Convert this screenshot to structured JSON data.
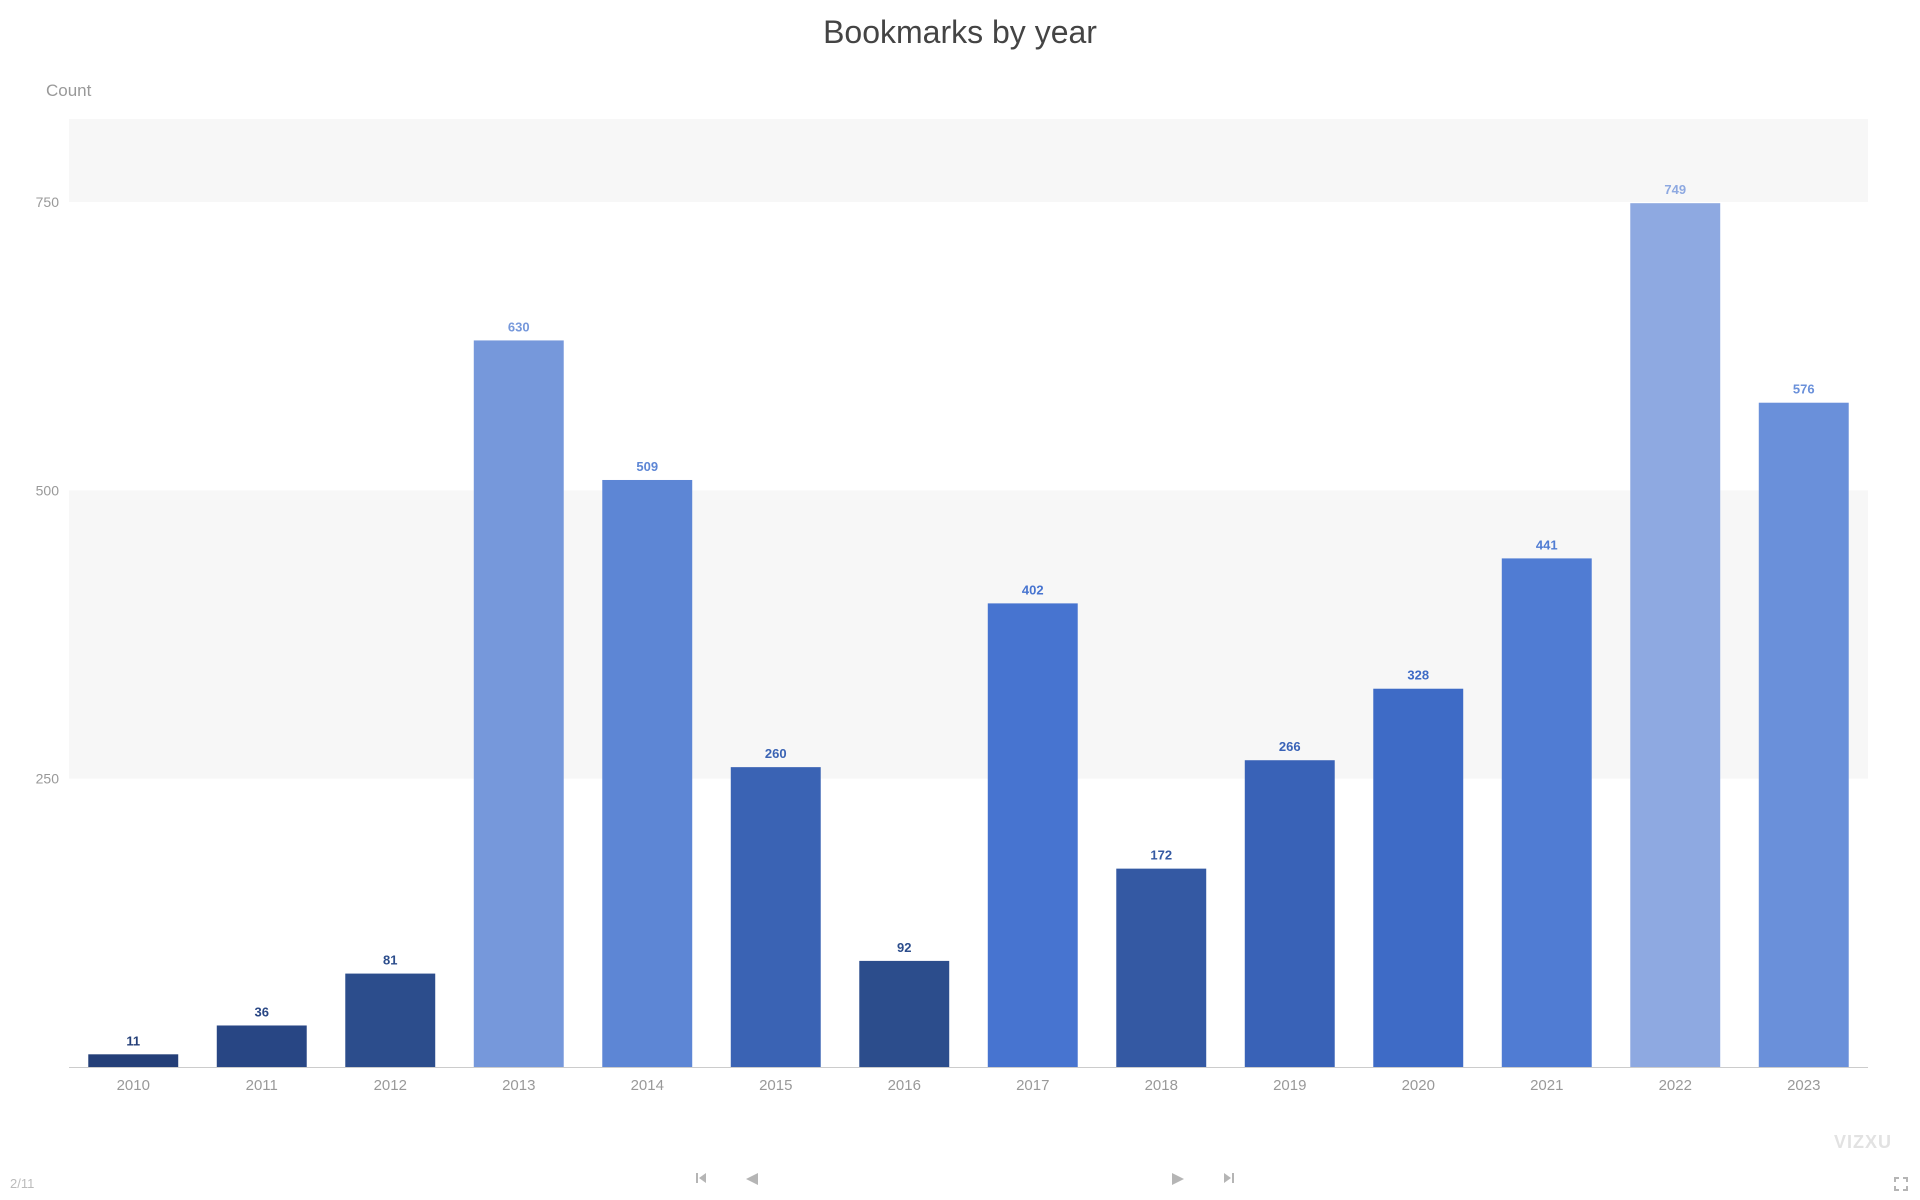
{
  "chart_data": {
    "type": "bar",
    "title": "Bookmarks by year",
    "ylabel": "Count",
    "xlabel": "",
    "categories": [
      "2010",
      "2011",
      "2012",
      "2013",
      "2014",
      "2015",
      "2016",
      "2017",
      "2018",
      "2019",
      "2020",
      "2021",
      "2022",
      "2023"
    ],
    "values": [
      11,
      36,
      81,
      630,
      509,
      260,
      92,
      402,
      172,
      266,
      328,
      441,
      749,
      576
    ],
    "ylim": [
      0,
      822
    ],
    "yticks": [
      250,
      500,
      750
    ],
    "grid": "alternating bands",
    "bar_colors": [
      "#243f78",
      "#284684",
      "#2c4d8c",
      "#7698db",
      "#5d86d5",
      "#3a63b4",
      "#2c4d8c",
      "#4774d0",
      "#3459a3",
      "#3962b7",
      "#3e6bc6",
      "#507cd3",
      "#8ea9e1",
      "#6a90da"
    ]
  },
  "footer": {
    "page_counter": "2/11",
    "brand": "VIZXU"
  },
  "colors": {
    "title": "#444444",
    "axis_text": "#999999",
    "band": "#f7f7f7",
    "baseline": "#cccccc"
  },
  "icons": {
    "first": "skip-first-icon",
    "prev": "prev-icon",
    "next": "next-icon",
    "last": "skip-last-icon",
    "fullscreen": "fullscreen-icon"
  }
}
